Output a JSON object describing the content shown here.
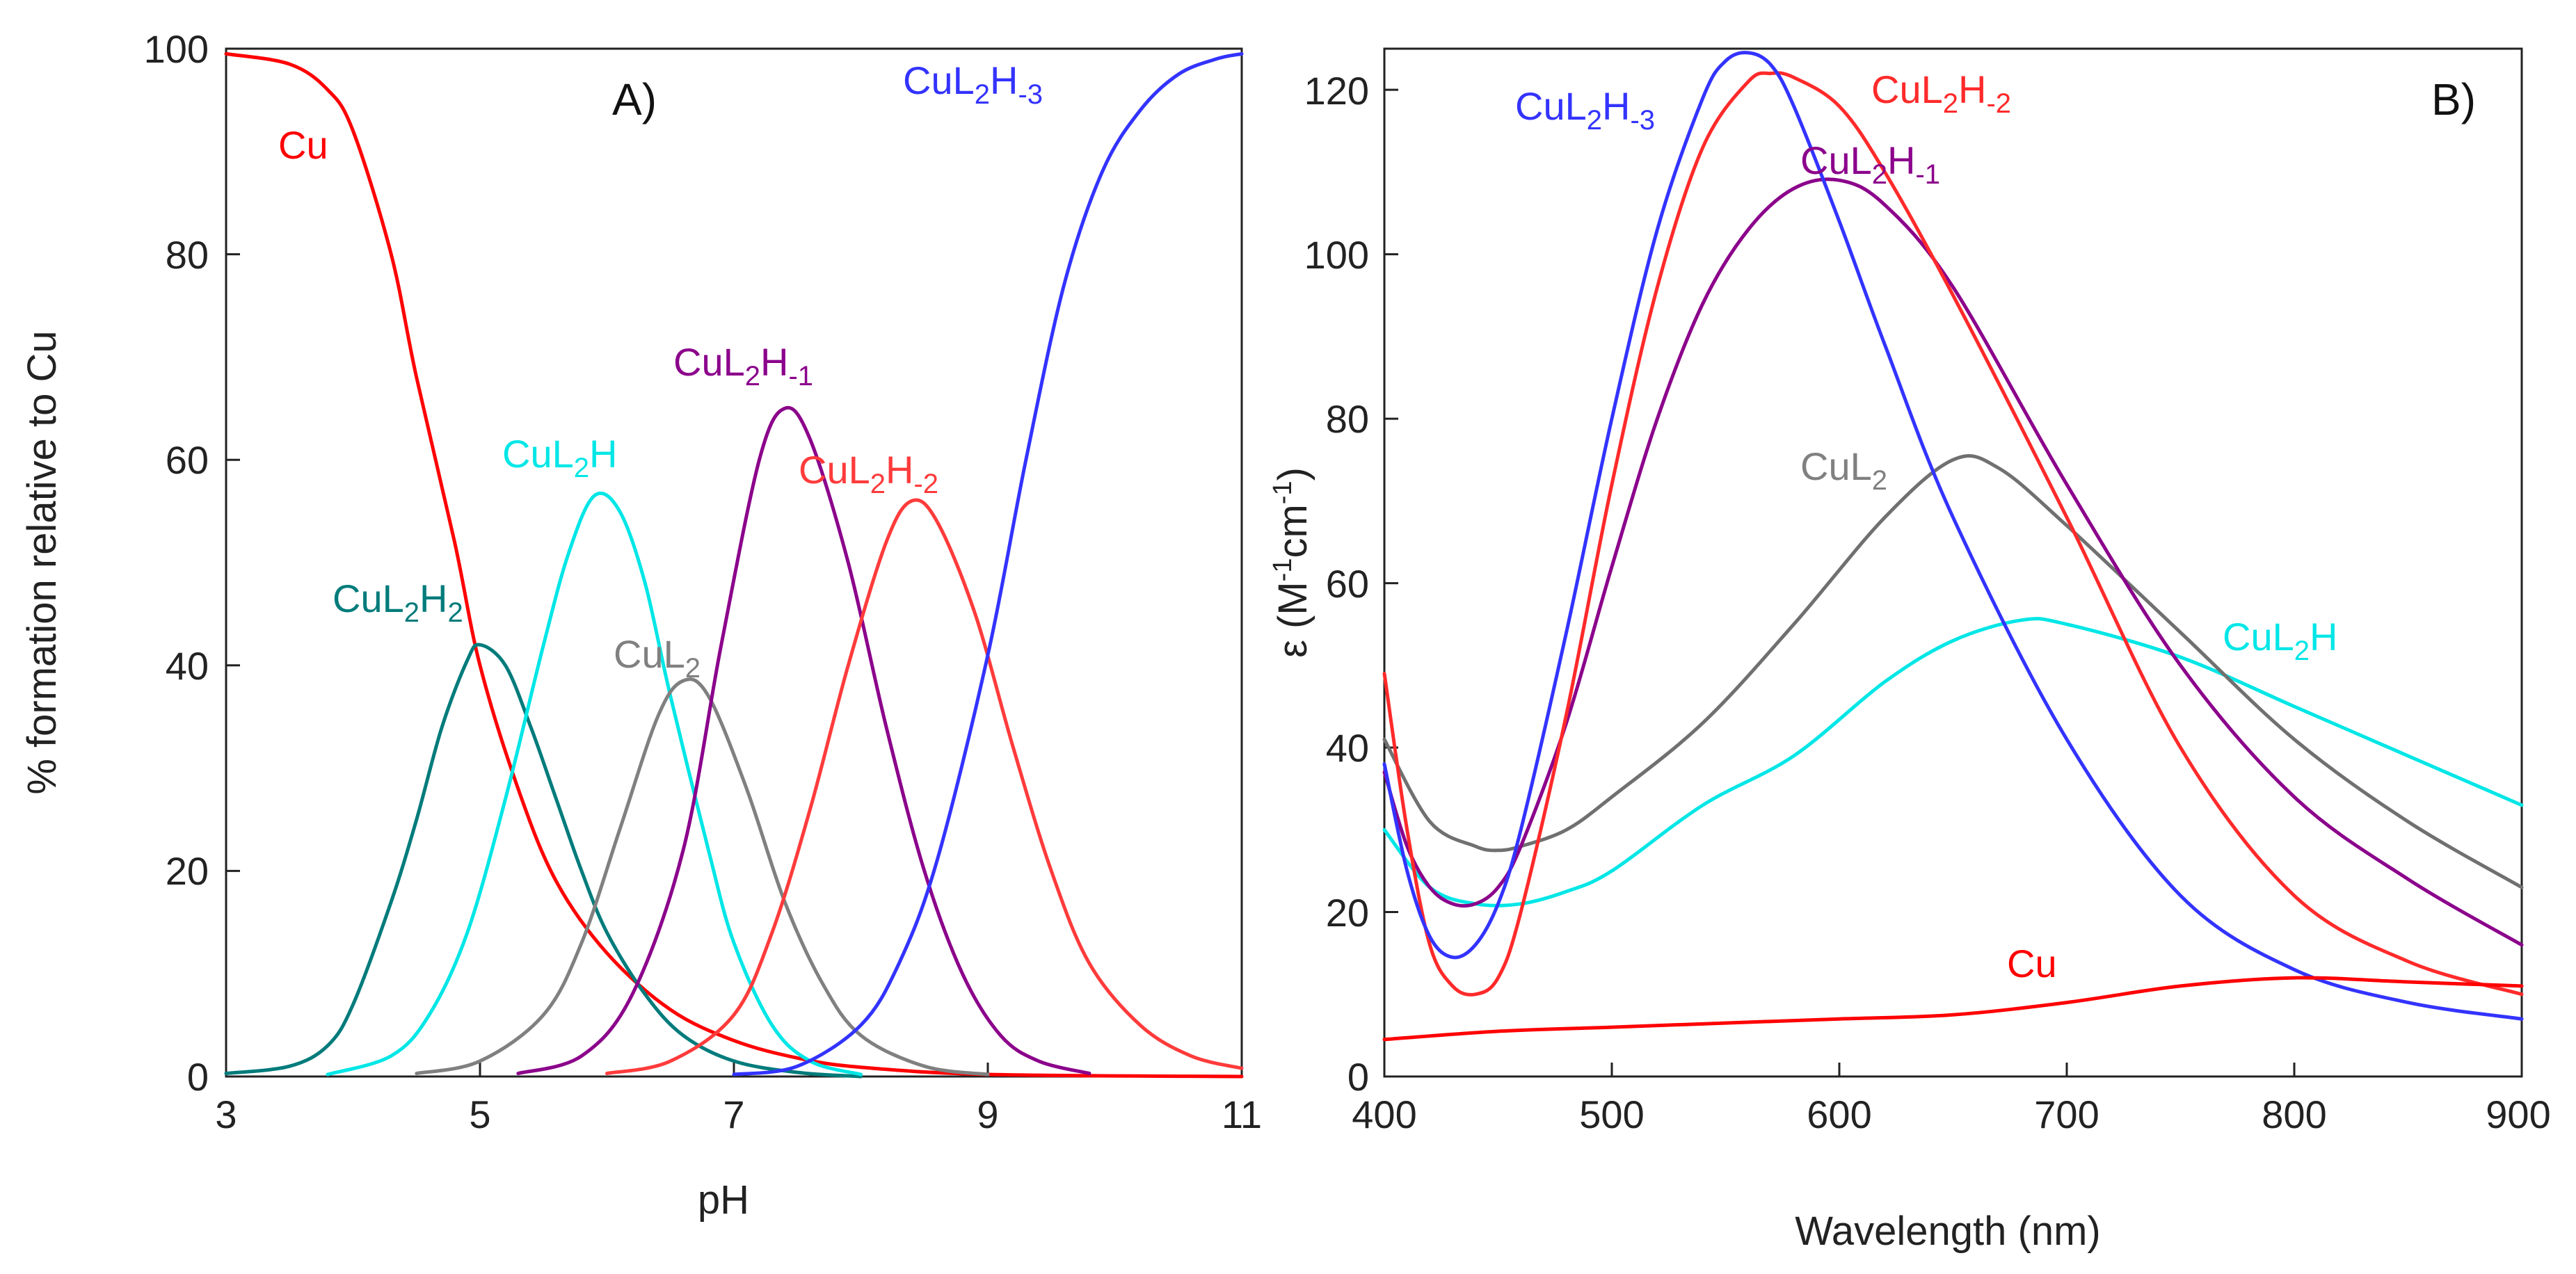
{
  "chart_data": [
    {
      "type": "line",
      "panel_label": "A)",
      "xlabel": "pH",
      "ylabel": "% formation relative to Cu",
      "xlim": [
        3,
        11
      ],
      "ylim": [
        0,
        100
      ],
      "xticks": [
        3,
        5,
        7,
        9,
        11
      ],
      "yticks": [
        0,
        20,
        40,
        60,
        80,
        100
      ],
      "grid": false,
      "legend": "inline labels",
      "series": [
        {
          "id": "cu",
          "name": "Cu",
          "label": "Cu",
          "color": "#ff0000",
          "x": [
            3.0,
            3.5,
            3.8,
            4.0,
            4.3,
            4.5,
            4.8,
            5.0,
            5.3,
            5.6,
            6.0,
            6.5,
            7.0,
            7.5,
            8.0,
            9.0,
            11.0
          ],
          "y": [
            99.5,
            98.5,
            96,
            92,
            80,
            68,
            52,
            40,
            28,
            19,
            12,
            6.5,
            3.5,
            1.8,
            0.9,
            0.2,
            0.0
          ]
        },
        {
          "id": "cul2h2",
          "name": "CuL2H2",
          "label": {
            "base": "CuL",
            "sub1": "2",
            "mid": "H",
            "sub2": "2"
          },
          "color": "#007b7b",
          "x": [
            3.0,
            3.5,
            3.8,
            4.0,
            4.3,
            4.5,
            4.7,
            4.9,
            5.0,
            5.2,
            5.4,
            5.6,
            5.8,
            6.0,
            6.3,
            6.6,
            7.0,
            7.5,
            8.0
          ],
          "y": [
            0.3,
            1.0,
            3.0,
            7.0,
            17,
            25,
            34,
            40.5,
            42,
            40,
            34,
            27,
            20,
            14,
            8,
            4,
            1.5,
            0.4,
            0.0
          ]
        },
        {
          "id": "cul2h",
          "name": "CuL2H",
          "label": {
            "base": "CuL",
            "sub1": "2",
            "mid": "H",
            "sub2": ""
          },
          "color": "#00e6e6",
          "x": [
            3.8,
            4.3,
            4.6,
            4.9,
            5.2,
            5.5,
            5.7,
            5.9,
            6.1,
            6.3,
            6.5,
            6.8,
            7.0,
            7.3,
            7.6,
            8.0
          ],
          "y": [
            0.2,
            2.0,
            6.0,
            14,
            27,
            42,
            51,
            56.5,
            55,
            48,
            37,
            22,
            13,
            5,
            1.5,
            0.2
          ]
        },
        {
          "id": "cul2",
          "name": "CuL2",
          "label": {
            "base": "CuL",
            "sub1": "2",
            "mid": "",
            "sub2": ""
          },
          "color": "#808080",
          "x": [
            4.5,
            5.0,
            5.5,
            5.8,
            6.1,
            6.4,
            6.6,
            6.8,
            7.1,
            7.4,
            7.7,
            8.0,
            8.5,
            9.0
          ],
          "y": [
            0.3,
            1.5,
            6.0,
            13,
            24,
            35,
            38.5,
            37,
            28,
            17,
            9,
            4,
            1.0,
            0.2
          ]
        },
        {
          "id": "cul2hm1",
          "name": "CuL2H-1",
          "label": {
            "base": "CuL",
            "sub1": "2",
            "mid": "H",
            "sub2": "-1"
          },
          "color": "#8b008b",
          "x": [
            5.3,
            5.8,
            6.2,
            6.6,
            6.9,
            7.2,
            7.4,
            7.6,
            7.9,
            8.2,
            8.5,
            8.8,
            9.1,
            9.4,
            9.8
          ],
          "y": [
            0.3,
            2.0,
            8.0,
            22,
            42,
            60,
            65,
            62,
            50,
            34,
            20,
            10,
            4,
            1.5,
            0.3
          ]
        },
        {
          "id": "cul2hm2",
          "name": "CuL2H-2",
          "label": {
            "base": "CuL",
            "sub1": "2",
            "mid": "H",
            "sub2": "-2"
          },
          "color": "#ff3b3b",
          "x": [
            6.0,
            6.5,
            7.0,
            7.3,
            7.6,
            7.9,
            8.2,
            8.4,
            8.6,
            8.9,
            9.2,
            9.5,
            9.8,
            10.2,
            10.6,
            11.0
          ],
          "y": [
            0.3,
            1.5,
            6.0,
            14,
            26,
            40,
            52,
            56,
            54,
            45,
            32,
            20,
            11,
            5,
            2,
            0.8
          ]
        },
        {
          "id": "cul2hm3",
          "name": "CuL2H-3",
          "label": {
            "base": "CuL",
            "sub1": "2",
            "mid": "H",
            "sub2": "-3"
          },
          "color": "#3333ff",
          "x": [
            7.0,
            7.5,
            8.0,
            8.3,
            8.6,
            9.0,
            9.3,
            9.6,
            9.9,
            10.2,
            10.5,
            10.8,
            11.0
          ],
          "y": [
            0.2,
            1.0,
            5.0,
            11,
            21,
            41,
            60,
            77,
            88,
            94,
            97.5,
            99,
            99.5
          ]
        }
      ]
    },
    {
      "type": "line",
      "panel_label": "B)",
      "xlabel": "Wavelength (nm)",
      "ylabel": "ε (M⁻¹cm⁻¹)",
      "ylabel_parts": {
        "pre": "ε (M",
        "sup1": "-1",
        "mid": "cm",
        "sup2": "-1",
        "post": ")"
      },
      "xlim": [
        400,
        900
      ],
      "ylim": [
        0,
        125
      ],
      "xticks": [
        400,
        500,
        600,
        700,
        800,
        900
      ],
      "yticks": [
        0,
        20,
        40,
        60,
        80,
        100,
        120
      ],
      "grid": false,
      "legend": "inline labels",
      "series": [
        {
          "id": "cul2hm3",
          "name": "CuL2H-3",
          "label": {
            "base": "CuL",
            "sub1": "2",
            "mid": "H",
            "sub2": "-3"
          },
          "color": "#3333ff",
          "x": [
            400,
            410,
            420,
            430,
            440,
            450,
            460,
            480,
            500,
            520,
            540,
            550,
            560,
            570,
            580,
            600,
            620,
            650,
            700,
            750,
            800,
            850,
            900
          ],
          "y": [
            38,
            25,
            17,
            14.5,
            16,
            21,
            30,
            54,
            80,
            103,
            119,
            123.5,
            124.5,
            123,
            118,
            104,
            89,
            68,
            41,
            22,
            13,
            9,
            7
          ]
        },
        {
          "id": "cul2hm2",
          "name": "CuL2H-2",
          "label": {
            "base": "CuL",
            "sub1": "2",
            "mid": "H",
            "sub2": "-2"
          },
          "color": "#ff2a2a",
          "x": [
            400,
            410,
            420,
            430,
            440,
            450,
            460,
            480,
            500,
            520,
            540,
            560,
            570,
            580,
            600,
            620,
            650,
            700,
            750,
            800,
            850,
            900
          ],
          "y": [
            49,
            30,
            16,
            11,
            10,
            12,
            20,
            44,
            72,
            96,
            113,
            121,
            122,
            121.5,
            118,
            110,
            95,
            68,
            40,
            22,
            14,
            10
          ]
        },
        {
          "id": "cul2hm1",
          "name": "CuL2H-1",
          "label": {
            "base": "CuL",
            "sub1": "2",
            "mid": "H",
            "sub2": "-1"
          },
          "color": "#8b008b",
          "x": [
            400,
            410,
            420,
            430,
            440,
            450,
            460,
            480,
            500,
            520,
            540,
            560,
            580,
            600,
            620,
            650,
            700,
            750,
            800,
            850,
            900
          ],
          "y": [
            37,
            28,
            23,
            21,
            21,
            23,
            28,
            43,
            62,
            80,
            94,
            103,
            108,
            109,
            106,
            96,
            72,
            50,
            34,
            24,
            16
          ]
        },
        {
          "id": "cul2",
          "name": "CuL2",
          "label": {
            "base": "CuL",
            "sub1": "2",
            "mid": "",
            "sub2": ""
          },
          "color": "#707070",
          "x": [
            400,
            420,
            440,
            450,
            460,
            480,
            500,
            540,
            580,
            620,
            650,
            670,
            700,
            750,
            800,
            850,
            900
          ],
          "y": [
            41,
            31,
            28,
            27.5,
            28,
            30,
            34,
            43,
            55,
            68,
            75,
            74,
            67,
            54,
            41,
            31,
            23
          ]
        },
        {
          "id": "cul2h",
          "name": "CuL2H",
          "label": {
            "base": "CuL",
            "sub1": "2",
            "mid": "H",
            "sub2": ""
          },
          "color": "#00e6e6",
          "x": [
            400,
            420,
            440,
            460,
            480,
            500,
            540,
            580,
            620,
            650,
            680,
            700,
            750,
            800,
            850,
            900
          ],
          "y": [
            30,
            23,
            21,
            21,
            22.5,
            25,
            33,
            39,
            48,
            53,
            55.5,
            55,
            51,
            45,
            39,
            33
          ]
        },
        {
          "id": "cu",
          "name": "Cu",
          "label": "Cu",
          "color": "#ff0000",
          "x": [
            400,
            450,
            500,
            550,
            600,
            650,
            700,
            750,
            800,
            850,
            900
          ],
          "y": [
            4.5,
            5.5,
            6.0,
            6.5,
            7.0,
            7.5,
            9.0,
            11.0,
            12.0,
            11.5,
            11.0
          ]
        }
      ]
    }
  ]
}
